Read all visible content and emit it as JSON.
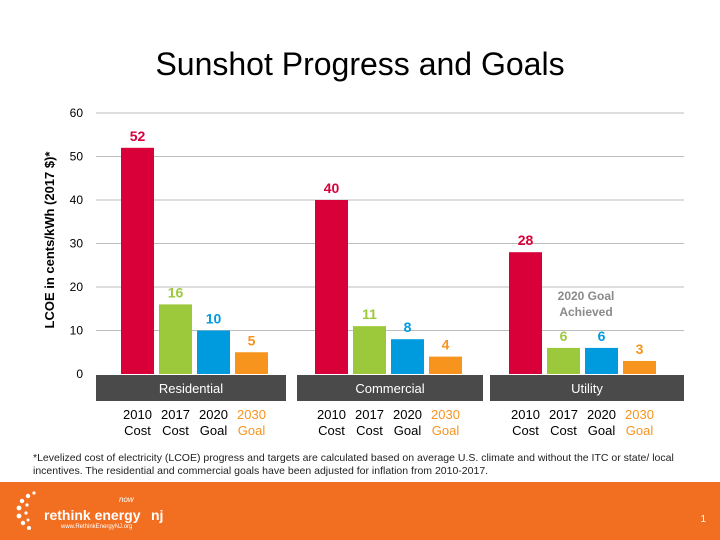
{
  "slide": {
    "title": "Sunshot Progress and Goals",
    "footnote": "*Levelized cost of electricity (LCOE) progress and targets are calculated based on average U.S. climate and without the ITC or state/ local incentives. The residential and commercial goals have been adjusted for inflation from 2010-2017.",
    "page_number": "1"
  },
  "logo": {
    "brand": "rethink energy",
    "state": "nj",
    "tagline": "now",
    "url": "www.RethinkEnergyNJ.org"
  },
  "colors": {
    "red": "#d9003a",
    "green": "#9cc83b",
    "blue": "#009bde",
    "orange": "#f7941d",
    "group_band": "#4a4a4a",
    "footer": "#f26f21"
  },
  "chart_data": {
    "type": "bar",
    "ylabel": "LCOE in cents/kWh (2017 $)*",
    "ylim": [
      0,
      60
    ],
    "yticks": [
      0,
      10,
      20,
      30,
      40,
      50,
      60
    ],
    "grid": true,
    "groups": [
      "Residential",
      "Commercial",
      "Utility"
    ],
    "categories": [
      [
        "2010",
        "Cost"
      ],
      [
        "2017",
        "Cost"
      ],
      [
        "2020",
        "Goal"
      ],
      [
        "2030",
        "Goal"
      ]
    ],
    "series_colors": [
      "#d9003a",
      "#9cc83b",
      "#009bde",
      "#f7941d"
    ],
    "values": [
      [
        52,
        16,
        10,
        5
      ],
      [
        40,
        11,
        8,
        4
      ],
      [
        28,
        6,
        6,
        3
      ]
    ],
    "annotations": [
      {
        "group": "Utility",
        "text": [
          "2020 Goal",
          "Achieved"
        ]
      }
    ]
  }
}
